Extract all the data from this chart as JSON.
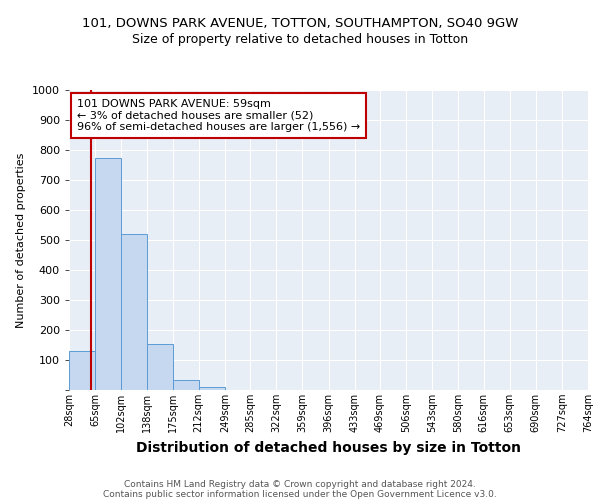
{
  "title1": "101, DOWNS PARK AVENUE, TOTTON, SOUTHAMPTON, SO40 9GW",
  "title2": "Size of property relative to detached houses in Totton",
  "xlabel": "Distribution of detached houses by size in Totton",
  "ylabel": "Number of detached properties",
  "footer1": "Contains HM Land Registry data © Crown copyright and database right 2024.",
  "footer2": "Contains public sector information licensed under the Open Government Licence v3.0.",
  "bin_edges": [
    28,
    65,
    102,
    138,
    175,
    212,
    249,
    285,
    322,
    359,
    396,
    433,
    469,
    506,
    543,
    580,
    616,
    653,
    690,
    727,
    764
  ],
  "bin_labels": [
    "28sqm",
    "65sqm",
    "102sqm",
    "138sqm",
    "175sqm",
    "212sqm",
    "249sqm",
    "285sqm",
    "322sqm",
    "359sqm",
    "396sqm",
    "433sqm",
    "469sqm",
    "506sqm",
    "543sqm",
    "580sqm",
    "616sqm",
    "653sqm",
    "690sqm",
    "727sqm",
    "764sqm"
  ],
  "bar_values": [
    130,
    775,
    520,
    155,
    35,
    10,
    0,
    0,
    0,
    0,
    0,
    0,
    0,
    0,
    0,
    0,
    0,
    0,
    0,
    0
  ],
  "bar_color": "#c5d8f0",
  "bar_edgecolor": "#5b9bd5",
  "vline_x": 59,
  "vline_color": "#c00000",
  "annotation_text": "101 DOWNS PARK AVENUE: 59sqm\n← 3% of detached houses are smaller (52)\n96% of semi-detached houses are larger (1,556) →",
  "annotation_box_color": "#ffffff",
  "annotation_box_edgecolor": "#c00000",
  "ylim": [
    0,
    1000
  ],
  "yticks": [
    0,
    100,
    200,
    300,
    400,
    500,
    600,
    700,
    800,
    900,
    1000
  ],
  "title1_fontsize": 9.5,
  "title2_fontsize": 9,
  "xlabel_fontsize": 10,
  "ylabel_fontsize": 8,
  "footer_fontsize": 6.5,
  "background_color": "#ffffff",
  "plot_bg_color": "#e8eef5"
}
